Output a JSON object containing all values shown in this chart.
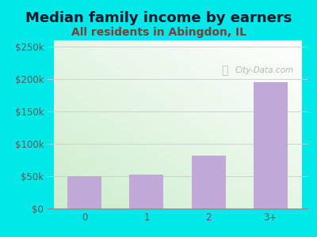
{
  "title": "Median family income by earners",
  "subtitle": "All residents in Abingdon, IL",
  "categories": [
    "0",
    "1",
    "2",
    "3+"
  ],
  "values": [
    50000,
    53000,
    82000,
    195000
  ],
  "bar_color": "#c0a8d8",
  "background_color": "#00e8e8",
  "title_color": "#1a1a2e",
  "subtitle_color": "#7a4040",
  "tick_label_color": "#5a5a5a",
  "ylim": [
    0,
    260000
  ],
  "yticks": [
    0,
    50000,
    100000,
    150000,
    200000,
    250000
  ],
  "ytick_labels": [
    "$0",
    "$50k",
    "$100k",
    "$150k",
    "$200k",
    "$250k"
  ],
  "watermark": "City-Data.com",
  "title_fontsize": 13,
  "subtitle_fontsize": 10,
  "tick_fontsize": 8.5,
  "bar_width": 0.55
}
